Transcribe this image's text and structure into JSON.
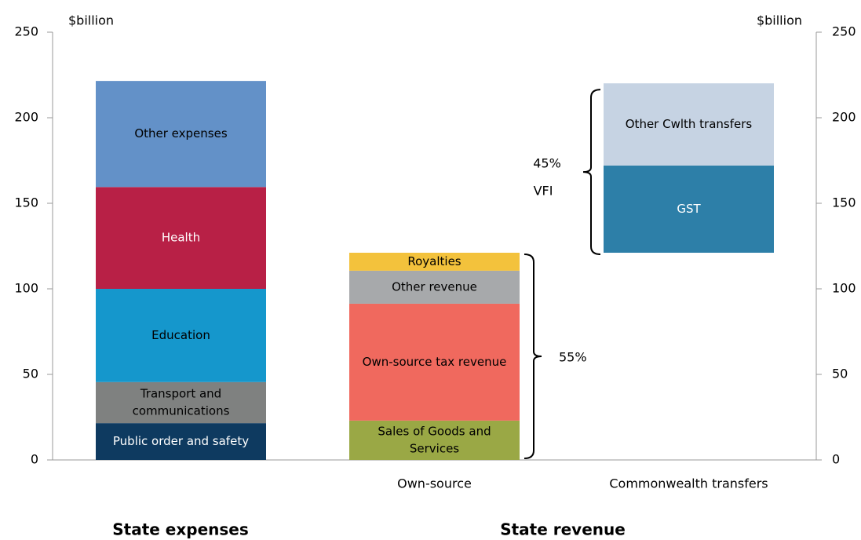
{
  "chart_data": {
    "type": "stacked_bar",
    "y_label_left": "$billion",
    "y_label_right": "$billion",
    "ylim": [
      0,
      250
    ],
    "yticks": [
      0,
      50,
      100,
      150,
      200,
      250
    ],
    "y2lim": [
      0,
      250
    ],
    "y2ticks": [
      0,
      50,
      100,
      150,
      200,
      250
    ],
    "categories": [
      null,
      "Own-source",
      "Commonwealth transfers"
    ],
    "groups": [
      "State expenses",
      "State revenue"
    ],
    "stacks": [
      {
        "segments": [
          {
            "label": [
              "Public order and safety"
            ],
            "value": 21.5,
            "color": "#0e3a60",
            "text_color": "#ffffff"
          },
          {
            "label": [
              "Transport and",
              "communications"
            ],
            "value": 24,
            "color": "#7f8180",
            "text_color": "#000000"
          },
          {
            "label": [
              "Education"
            ],
            "value": 54.5,
            "color": "#1597cc",
            "text_color": "#000000"
          },
          {
            "label": [
              "Health"
            ],
            "value": 59.5,
            "color": "#b82046",
            "text_color": "#ffffff"
          },
          {
            "label": [
              "Other expenses"
            ],
            "value": 62,
            "color": "#6391c8",
            "text_color": "#000000"
          }
        ]
      },
      {
        "segments": [
          {
            "label": [
              "Sales of Goods and",
              "Services"
            ],
            "value": 23,
            "color": "#9aa845",
            "text_color": "#000000"
          },
          {
            "label": [
              "Own-source tax revenue"
            ],
            "value": 68.3,
            "color": "#f0695e",
            "text_color": "#000000"
          },
          {
            "label": [
              "Other revenue"
            ],
            "value": 19.3,
            "color": "#a7a9ab",
            "text_color": "#000000"
          },
          {
            "label": [
              "Royalties"
            ],
            "value": 10.5,
            "color": "#f3c23c",
            "text_color": "#000000"
          }
        ]
      },
      {
        "segments": [
          {
            "label": [
              "GST"
            ],
            "value": 51,
            "color": "#2d7fa8",
            "text_color": "#ffffff"
          },
          {
            "label": [
              "Other Cwlth transfers"
            ],
            "value": 48,
            "color": "#c6d3e3",
            "text_color": "#000000"
          }
        ]
      }
    ],
    "annotations": [
      [
        "55%"
      ],
      [
        "45%",
        "VFI"
      ]
    ]
  }
}
